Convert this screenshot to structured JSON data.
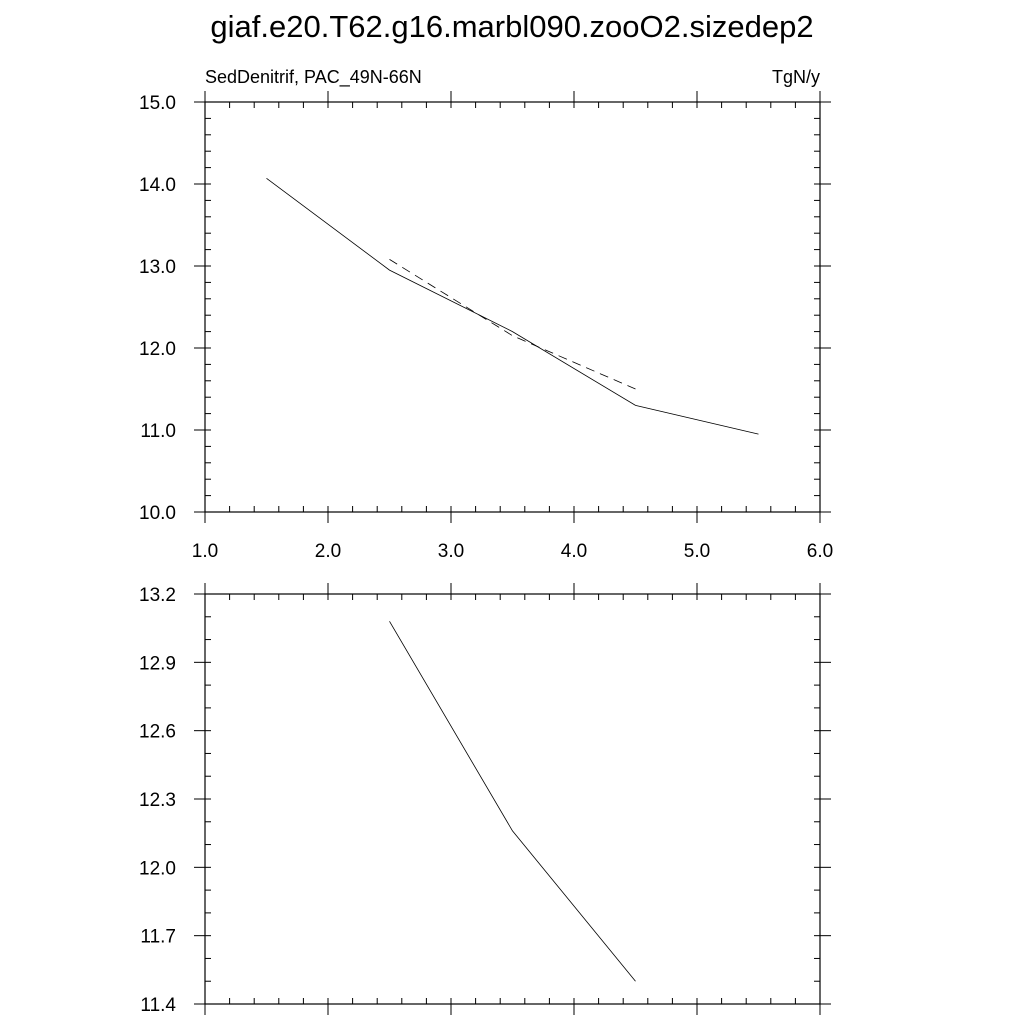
{
  "title": "giaf.e20.T62.g16.marbl090.zooO2.sizedep2",
  "chart_data": [
    {
      "type": "line",
      "left_label": "SedDenitrif, PAC_49N-66N",
      "right_label": "TgN/y",
      "xlim": [
        1.0,
        6.0
      ],
      "ylim": [
        10.0,
        15.0
      ],
      "x_major_ticks": [
        1.0,
        2.0,
        3.0,
        4.0,
        5.0,
        6.0
      ],
      "x_tick_labels": [
        "1.0",
        "2.0",
        "3.0",
        "4.0",
        "5.0",
        "6.0"
      ],
      "x_minor_step": 0.2,
      "y_major_ticks": [
        10.0,
        11.0,
        12.0,
        13.0,
        14.0,
        15.0
      ],
      "y_tick_labels": [
        "10.0",
        "11.0",
        "12.0",
        "13.0",
        "14.0",
        "15.0"
      ],
      "y_minor_step": 0.2,
      "grid": false,
      "series": [
        {
          "style": "solid",
          "x": [
            1.5,
            2.5,
            3.5,
            4.5,
            5.5
          ],
          "y": [
            14.07,
            12.95,
            12.2,
            11.3,
            10.95
          ]
        },
        {
          "style": "dashed",
          "x": [
            2.5,
            3.5,
            4.5
          ],
          "y": [
            13.08,
            12.15,
            11.5
          ]
        }
      ]
    },
    {
      "type": "line",
      "xlim": [
        1.0,
        6.0
      ],
      "ylim": [
        11.4,
        13.2
      ],
      "x_major_ticks": [
        1.0,
        2.0,
        3.0,
        4.0,
        5.0,
        6.0
      ],
      "x_tick_labels": [],
      "x_minor_step": 0.2,
      "y_major_ticks": [
        11.4,
        11.7,
        12.0,
        12.3,
        12.6,
        12.9,
        13.2
      ],
      "y_tick_labels": [
        "11.4",
        "11.7",
        "12.0",
        "12.3",
        "12.6",
        "12.9",
        "13.2"
      ],
      "y_minor_step": 0.1,
      "grid": false,
      "series": [
        {
          "style": "solid",
          "x": [
            2.5,
            3.5,
            4.5
          ],
          "y": [
            13.08,
            12.16,
            11.5
          ]
        }
      ]
    }
  ]
}
